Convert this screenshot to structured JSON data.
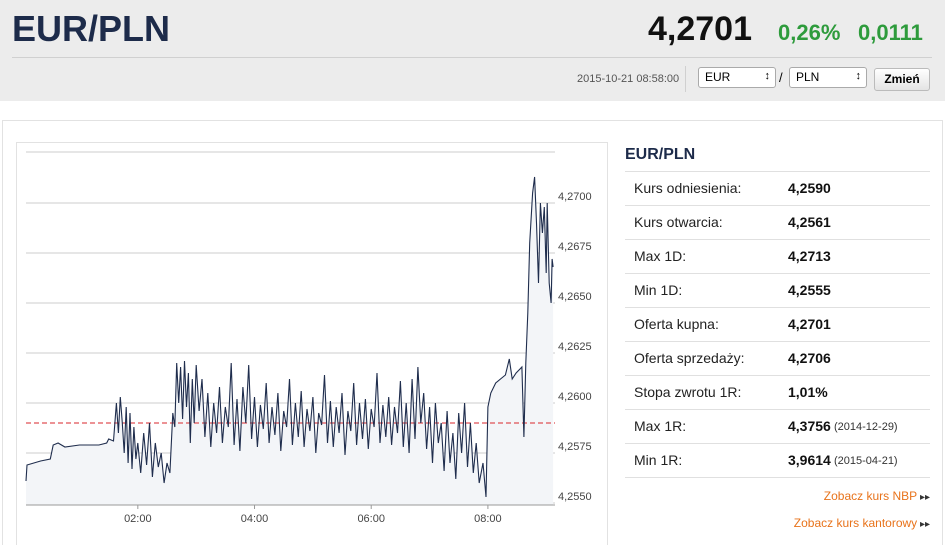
{
  "header": {
    "title": "EUR/PLN",
    "price": "4,2701",
    "change_pct": "0,26%",
    "change_abs": "0,0111",
    "timestamp": "2015-10-21 08:58:00",
    "base": "EUR",
    "separator": "/",
    "quote": "PLN",
    "button": "Zmień"
  },
  "chart_data": {
    "type": "line",
    "color": "#1f2d4d",
    "grid": true,
    "reference": 4.259,
    "reference_color": "#d9262b",
    "x": [
      5,
      6,
      20,
      30,
      33,
      38,
      45,
      60,
      80,
      88,
      90,
      95,
      98,
      100,
      102,
      104,
      106,
      108,
      110,
      112,
      114,
      116,
      118,
      120,
      123,
      126,
      129,
      132,
      135,
      138,
      141,
      144,
      147,
      150,
      153,
      156,
      158,
      160,
      162,
      164,
      166,
      168,
      170,
      172,
      174,
      176,
      178,
      180,
      183,
      186,
      189,
      192,
      195,
      198,
      201,
      204,
      207,
      210,
      213,
      216,
      219,
      222,
      225,
      228,
      231,
      234,
      237,
      240,
      243,
      246,
      249,
      252,
      255,
      258,
      261,
      264,
      267,
      270,
      273,
      276,
      279,
      282,
      285,
      288,
      291,
      294,
      297,
      300,
      303,
      306,
      309,
      312,
      315,
      318,
      321,
      324,
      327,
      330,
      333,
      336,
      339,
      342,
      345,
      348,
      351,
      354,
      357,
      360,
      363,
      366,
      369,
      372,
      375,
      378,
      381,
      384,
      387,
      390,
      393,
      396,
      399,
      402,
      405,
      408,
      411,
      414,
      417,
      420,
      423,
      426,
      429,
      432,
      435,
      438,
      441,
      444,
      447,
      450,
      453,
      456,
      459,
      462,
      465,
      468,
      471,
      475,
      478,
      480,
      483,
      488,
      493,
      498,
      502,
      505,
      509,
      513,
      515,
      517,
      519,
      521,
      523,
      526,
      528,
      530,
      532,
      534,
      536,
      538,
      540,
      541,
      543,
      545,
      546,
      547
    ],
    "values": [
      4.2561,
      4.2569,
      4.2571,
      4.2572,
      4.2579,
      4.258,
      4.2578,
      4.2579,
      4.2579,
      4.258,
      4.2582,
      4.2581,
      4.26,
      4.2585,
      4.2603,
      4.259,
      4.2575,
      4.2598,
      4.257,
      4.2595,
      4.2567,
      4.2588,
      4.2572,
      4.258,
      4.2565,
      4.2585,
      4.2569,
      4.259,
      4.2563,
      4.258,
      4.2568,
      4.2575,
      4.256,
      4.257,
      4.2565,
      4.2595,
      4.2588,
      4.262,
      4.26,
      4.2618,
      4.2592,
      4.2621,
      4.2598,
      4.2615,
      4.258,
      4.2612,
      4.259,
      4.2619,
      4.2596,
      4.2612,
      4.2583,
      4.2605,
      4.2578,
      4.26,
      4.2585,
      4.2608,
      4.258,
      4.2598,
      4.2588,
      4.262,
      4.2579,
      4.2602,
      4.2576,
      4.2608,
      4.259,
      4.2619,
      4.2582,
      4.2603,
      4.2578,
      4.2599,
      4.2587,
      4.261,
      4.258,
      4.2598,
      4.2584,
      4.2605,
      4.2576,
      4.2596,
      4.2588,
      4.2612,
      4.2579,
      4.26,
      4.2583,
      4.2606,
      4.2578,
      4.2597,
      4.2586,
      4.2603,
      4.2575,
      4.2595,
      4.2589,
      4.2614,
      4.258,
      4.2601,
      4.2578,
      4.2598,
      4.2585,
      4.2605,
      4.2574,
      4.2596,
      4.2586,
      4.261,
      4.2579,
      4.26,
      4.2582,
      4.2602,
      4.2577,
      4.2597,
      4.2588,
      4.2615,
      4.258,
      4.2599,
      4.2583,
      4.2603,
      4.2579,
      4.2598,
      4.2585,
      4.2611,
      4.2578,
      4.26,
      4.2575,
      4.2612,
      4.2582,
      4.2618,
      4.259,
      4.2605,
      4.2577,
      4.2598,
      4.257,
      4.26,
      4.258,
      4.259,
      4.2566,
      4.2596,
      4.257,
      4.2585,
      4.2562,
      4.2595,
      4.2575,
      4.26,
      4.2568,
      4.259,
      4.2565,
      4.258,
      4.256,
      4.257,
      4.2553,
      4.2598,
      4.2605,
      4.261,
      4.2612,
      4.2614,
      4.2622,
      4.2612,
      4.2615,
      4.2617,
      4.2618,
      4.2583,
      4.262,
      4.2645,
      4.268,
      4.2705,
      4.2713,
      4.269,
      4.266,
      4.27,
      4.2685,
      4.2698,
      4.2665,
      4.27,
      4.266,
      4.265,
      4.2672,
      4.2668
    ],
    "xlim": [
      5,
      549
    ],
    "xticks": [
      {
        "value": 120,
        "label": "02:00"
      },
      {
        "value": 240,
        "label": "04:00"
      },
      {
        "value": 360,
        "label": "06:00"
      },
      {
        "value": 480,
        "label": "08:00"
      }
    ],
    "ylim": [
      4.2549,
      4.27255
    ],
    "yticks": [
      {
        "value": 4.255,
        "label": "4,2550"
      },
      {
        "value": 4.2575,
        "label": "4,2575"
      },
      {
        "value": 4.26,
        "label": "4,2600"
      },
      {
        "value": 4.2625,
        "label": "4,2625"
      },
      {
        "value": 4.265,
        "label": "4,2650"
      },
      {
        "value": 4.2675,
        "label": "4,2675"
      },
      {
        "value": 4.27,
        "label": "4,2700"
      }
    ]
  },
  "stats": {
    "title": "EUR/PLN",
    "rows": [
      {
        "label": "Kurs odniesienia:",
        "value": "4,2590"
      },
      {
        "label": "Kurs otwarcia:",
        "value": "4,2561"
      },
      {
        "label": "Max 1D:",
        "value": "4,2713"
      },
      {
        "label": "Min 1D:",
        "value": "4,2555"
      },
      {
        "label": "Oferta kupna:",
        "value": "4,2701"
      },
      {
        "label": "Oferta sprzedaży:",
        "value": "4,2706"
      },
      {
        "label": "Stopa zwrotu 1R:",
        "value": "1,01%"
      },
      {
        "label": "Max 1R:",
        "value": "4,3756",
        "date": "(2014-12-29)"
      },
      {
        "label": "Min 1R:",
        "value": "3,9614",
        "date": "(2015-04-21)"
      }
    ]
  },
  "links": [
    "Zobacz kurs NBP",
    "Zobacz kurs kantorowy"
  ]
}
